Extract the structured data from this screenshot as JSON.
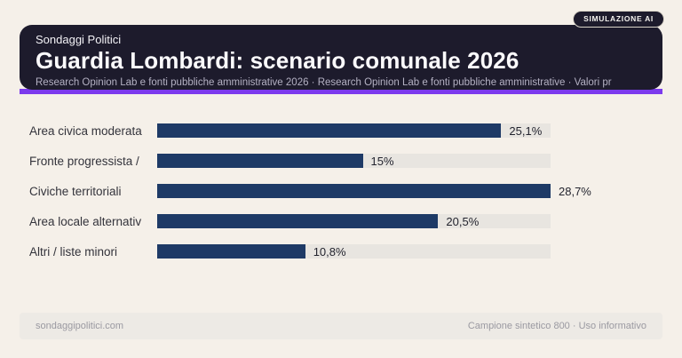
{
  "badge": {
    "label": "SIMULAZIONE AI"
  },
  "header": {
    "kicker": "Sondaggi Politici",
    "title": "Guardia Lombardi: scenario comunale 2026",
    "subtitle": "Research Opinion Lab e fonti pubbliche amministrative 2026 · Research Opinion Lab e fonti pubbliche amministrative · Valori pr"
  },
  "chart_data": {
    "type": "bar",
    "orientation": "horizontal",
    "title": "Guardia Lombardi: scenario comunale 2026",
    "xlabel": "",
    "ylabel": "",
    "grid": false,
    "legend": false,
    "categories": [
      "Area civica moderata",
      "Fronte progressista /",
      "Civiche territoriali",
      "Area locale alternativ",
      "Altri / liste minori"
    ],
    "values": [
      25.1,
      15,
      28.7,
      20.5,
      10.8
    ],
    "value_labels": [
      "25,1%",
      "15%",
      "28,7%",
      "20,5%",
      "10,8%"
    ],
    "max_value": 28.7,
    "unit": "%"
  },
  "footer": {
    "left": "sondaggipolitici.com",
    "right": "Campione sintetico 800 · Uso informativo"
  },
  "colors": {
    "background": "#f5f0e9",
    "card": "#1d1b2c",
    "accent": "#7c3aed",
    "bar": "#1e3a66",
    "track": "#e8e5e0",
    "footer_band": "#edeae5"
  }
}
